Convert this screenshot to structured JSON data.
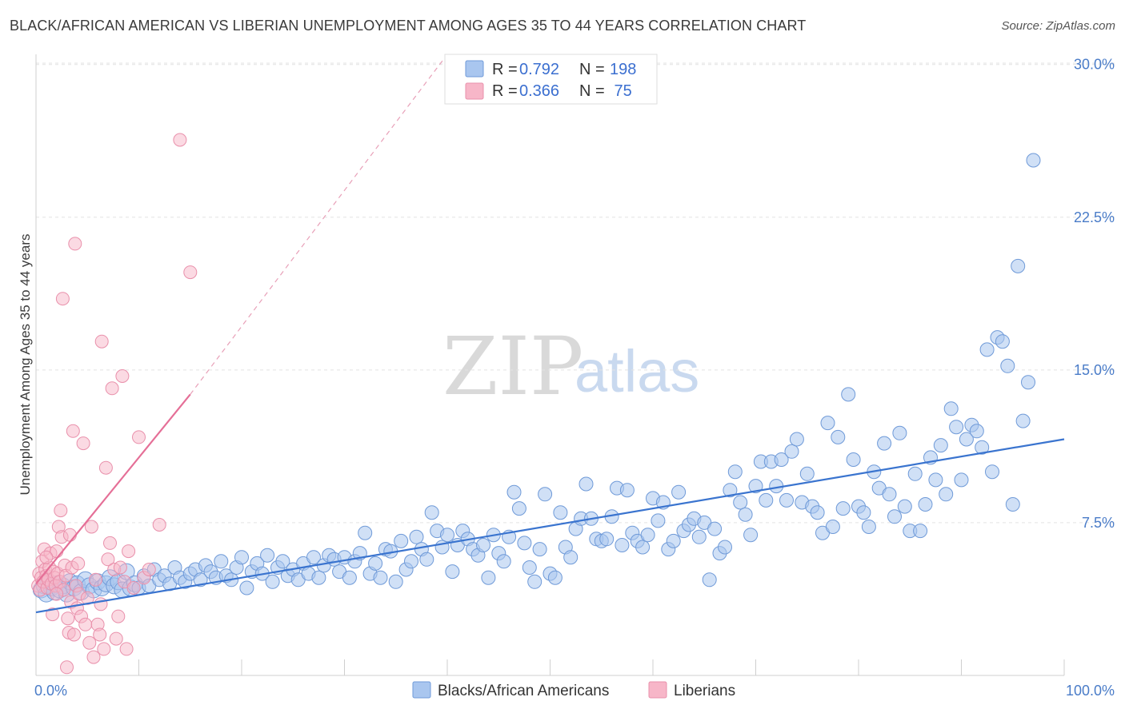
{
  "header": {
    "title": "BLACK/AFRICAN AMERICAN VS LIBERIAN UNEMPLOYMENT AMONG AGES 35 TO 44 YEARS CORRELATION CHART",
    "source": "Source: ZipAtlas.com"
  },
  "watermark": {
    "zip": "ZIP",
    "atlas": "atlas"
  },
  "legend": {
    "rows": [
      {
        "r_label": "R = ",
        "r_value": "0.792",
        "n_label": "N = ",
        "n_value": "198",
        "color": "#a9c6ef"
      },
      {
        "r_label": "R = ",
        "r_value": "0.366",
        "n_label": "N = ",
        "n_value": " 75",
        "color": "#f7b6c8"
      }
    ]
  },
  "bottom_legend": [
    "Blacks/African Americans",
    "Liberians"
  ],
  "chart_data": {
    "type": "scatter",
    "title": "BLACK/AFRICAN AMERICAN VS LIBERIAN UNEMPLOYMENT AMONG AGES 35 TO 44 YEARS CORRELATION CHART",
    "xlabel": "",
    "ylabel": "Unemployment Among Ages 35 to 44 years",
    "xlim": [
      0,
      100
    ],
    "ylim": [
      0,
      30.5
    ],
    "x_tick_labels": [
      "0.0%",
      "100.0%"
    ],
    "y_ticks": [
      7.5,
      15.0,
      22.5,
      30.0
    ],
    "y_tick_labels": [
      "7.5%",
      "15.0%",
      "22.5%",
      "30.0%"
    ],
    "grid": true,
    "colors": {
      "blue": "#4a7cc8",
      "blue_fill": "#a9c6ef",
      "pink": "#e8779c",
      "pink_fill": "#f7b6c8"
    },
    "series": [
      {
        "name": "Blacks/African Americans",
        "R": 0.792,
        "N": 198,
        "trend": {
          "x0": 0,
          "y0": 3.1,
          "x1": 100,
          "y1": 11.6
        },
        "points": [
          [
            0.5,
            4.2
          ],
          [
            0.8,
            4.4
          ],
          [
            1.0,
            4.0
          ],
          [
            1.2,
            4.6
          ],
          [
            1.5,
            4.3
          ],
          [
            1.8,
            4.1
          ],
          [
            2.0,
            4.5
          ],
          [
            2.3,
            4.2
          ],
          [
            2.6,
            4.4
          ],
          [
            3.0,
            4.0
          ],
          [
            3.3,
            4.6
          ],
          [
            3.7,
            4.3
          ],
          [
            4.0,
            4.5
          ],
          [
            4.4,
            4.1
          ],
          [
            4.8,
            4.7
          ],
          [
            5.2,
            4.4
          ],
          [
            5.6,
            4.2
          ],
          [
            6.0,
            4.6
          ],
          [
            6.4,
            4.3
          ],
          [
            6.8,
            4.5
          ],
          [
            7.2,
            4.8
          ],
          [
            7.6,
            4.4
          ],
          [
            8.0,
            4.6
          ],
          [
            8.4,
            4.2
          ],
          [
            8.8,
            5.1
          ],
          [
            9.2,
            4.3
          ],
          [
            9.6,
            4.5
          ],
          [
            10.0,
            4.3
          ],
          [
            10.5,
            4.9
          ],
          [
            11.0,
            4.4
          ],
          [
            11.5,
            5.2
          ],
          [
            12.0,
            4.7
          ],
          [
            12.5,
            4.9
          ],
          [
            13.0,
            4.5
          ],
          [
            13.5,
            5.3
          ],
          [
            14.0,
            4.8
          ],
          [
            14.5,
            4.6
          ],
          [
            15.0,
            5.0
          ],
          [
            15.5,
            5.2
          ],
          [
            16.0,
            4.7
          ],
          [
            16.5,
            5.4
          ],
          [
            17.0,
            5.1
          ],
          [
            17.5,
            4.8
          ],
          [
            18.0,
            5.6
          ],
          [
            18.5,
            4.9
          ],
          [
            19.0,
            4.7
          ],
          [
            19.5,
            5.3
          ],
          [
            20.0,
            5.8
          ],
          [
            20.5,
            4.3
          ],
          [
            21.0,
            5.1
          ],
          [
            21.5,
            5.5
          ],
          [
            22.0,
            5.0
          ],
          [
            22.5,
            5.9
          ],
          [
            23.0,
            4.6
          ],
          [
            23.5,
            5.3
          ],
          [
            24.0,
            5.6
          ],
          [
            24.5,
            4.9
          ],
          [
            25.0,
            5.2
          ],
          [
            25.5,
            4.7
          ],
          [
            26.0,
            5.5
          ],
          [
            26.5,
            5.0
          ],
          [
            27.0,
            5.8
          ],
          [
            27.5,
            4.8
          ],
          [
            28.0,
            5.4
          ],
          [
            28.5,
            5.9
          ],
          [
            29.0,
            5.7
          ],
          [
            29.5,
            5.1
          ],
          [
            30.0,
            5.8
          ],
          [
            30.5,
            4.8
          ],
          [
            31.0,
            5.6
          ],
          [
            31.5,
            6.0
          ],
          [
            32.0,
            7.0
          ],
          [
            32.5,
            5.0
          ],
          [
            33.0,
            5.5
          ],
          [
            33.5,
            4.8
          ],
          [
            34.0,
            6.2
          ],
          [
            34.5,
            6.1
          ],
          [
            35.0,
            4.6
          ],
          [
            35.5,
            6.6
          ],
          [
            36.0,
            5.2
          ],
          [
            36.5,
            5.6
          ],
          [
            37.0,
            6.8
          ],
          [
            37.5,
            6.2
          ],
          [
            38.0,
            5.7
          ],
          [
            38.5,
            8.0
          ],
          [
            39.0,
            7.1
          ],
          [
            39.5,
            6.3
          ],
          [
            40.0,
            6.9
          ],
          [
            40.5,
            5.1
          ],
          [
            41.0,
            6.4
          ],
          [
            41.5,
            7.1
          ],
          [
            42.0,
            6.7
          ],
          [
            42.5,
            6.2
          ],
          [
            43.0,
            5.9
          ],
          [
            43.5,
            6.4
          ],
          [
            44.0,
            4.8
          ],
          [
            44.5,
            6.9
          ],
          [
            45.0,
            6.0
          ],
          [
            45.5,
            5.6
          ],
          [
            46.0,
            6.8
          ],
          [
            46.5,
            9.0
          ],
          [
            47.0,
            8.2
          ],
          [
            47.5,
            6.5
          ],
          [
            48.0,
            5.3
          ],
          [
            48.5,
            4.6
          ],
          [
            49.0,
            6.2
          ],
          [
            49.5,
            8.9
          ],
          [
            50.0,
            5.0
          ],
          [
            50.5,
            4.8
          ],
          [
            51.0,
            8.0
          ],
          [
            51.5,
            6.3
          ],
          [
            52.0,
            5.8
          ],
          [
            52.5,
            7.2
          ],
          [
            53.0,
            7.7
          ],
          [
            53.5,
            9.4
          ],
          [
            54.0,
            7.7
          ],
          [
            54.5,
            6.7
          ],
          [
            55.0,
            6.6
          ],
          [
            55.5,
            6.7
          ],
          [
            56.0,
            7.8
          ],
          [
            56.5,
            9.2
          ],
          [
            57.0,
            6.4
          ],
          [
            57.5,
            9.1
          ],
          [
            58.0,
            7.0
          ],
          [
            58.5,
            6.6
          ],
          [
            59.0,
            6.3
          ],
          [
            59.5,
            6.9
          ],
          [
            60.0,
            8.7
          ],
          [
            60.5,
            7.6
          ],
          [
            61.0,
            8.5
          ],
          [
            61.5,
            6.2
          ],
          [
            62.0,
            6.6
          ],
          [
            62.5,
            9.0
          ],
          [
            63.0,
            7.1
          ],
          [
            63.5,
            7.4
          ],
          [
            64.0,
            7.7
          ],
          [
            64.5,
            6.8
          ],
          [
            65.0,
            7.5
          ],
          [
            65.5,
            4.7
          ],
          [
            66.0,
            7.2
          ],
          [
            66.5,
            6.0
          ],
          [
            67.0,
            6.3
          ],
          [
            67.5,
            9.1
          ],
          [
            68.0,
            10.0
          ],
          [
            68.5,
            8.5
          ],
          [
            69.0,
            7.9
          ],
          [
            69.5,
            6.9
          ],
          [
            70.0,
            9.3
          ],
          [
            70.5,
            10.5
          ],
          [
            71.0,
            8.6
          ],
          [
            71.5,
            10.5
          ],
          [
            72.0,
            9.3
          ],
          [
            72.5,
            10.6
          ],
          [
            73.0,
            8.6
          ],
          [
            73.5,
            11.0
          ],
          [
            74.0,
            11.6
          ],
          [
            74.5,
            8.5
          ],
          [
            75.0,
            9.9
          ],
          [
            75.5,
            8.3
          ],
          [
            76.0,
            8.0
          ],
          [
            76.5,
            7.0
          ],
          [
            77.0,
            12.4
          ],
          [
            77.5,
            7.3
          ],
          [
            78.0,
            11.7
          ],
          [
            78.5,
            8.2
          ],
          [
            79.0,
            13.8
          ],
          [
            79.5,
            10.6
          ],
          [
            80.0,
            8.3
          ],
          [
            80.5,
            8.0
          ],
          [
            81.0,
            7.3
          ],
          [
            81.5,
            10.0
          ],
          [
            82.0,
            9.2
          ],
          [
            82.5,
            11.4
          ],
          [
            83.0,
            8.9
          ],
          [
            83.5,
            7.8
          ],
          [
            84.0,
            11.9
          ],
          [
            84.5,
            8.3
          ],
          [
            85.0,
            7.1
          ],
          [
            85.5,
            9.9
          ],
          [
            86.0,
            7.1
          ],
          [
            86.5,
            8.4
          ],
          [
            87.0,
            10.7
          ],
          [
            87.5,
            9.6
          ],
          [
            88.0,
            11.3
          ],
          [
            88.5,
            8.9
          ],
          [
            89.0,
            13.1
          ],
          [
            89.5,
            12.2
          ],
          [
            90.0,
            9.6
          ],
          [
            90.5,
            11.6
          ],
          [
            91.0,
            12.3
          ],
          [
            91.5,
            12.0
          ],
          [
            92.0,
            11.2
          ],
          [
            92.5,
            16.0
          ],
          [
            93.0,
            10.0
          ],
          [
            93.5,
            16.6
          ],
          [
            94.0,
            16.4
          ],
          [
            94.5,
            15.2
          ],
          [
            95.0,
            8.4
          ],
          [
            95.5,
            20.1
          ],
          [
            96.0,
            12.5
          ],
          [
            96.5,
            14.4
          ],
          [
            97.0,
            25.3
          ]
        ]
      },
      {
        "name": "Liberians",
        "R": 0.366,
        "N": 75,
        "trend": {
          "x0": 0,
          "y0": 4.5,
          "x1": 15,
          "y1": 13.8,
          "dash_x1": 40,
          "dash_y1": 30.5
        },
        "points": [
          [
            0.2,
            4.4
          ],
          [
            0.3,
            5.0
          ],
          [
            0.4,
            4.2
          ],
          [
            0.5,
            4.8
          ],
          [
            0.6,
            5.6
          ],
          [
            0.7,
            4.6
          ],
          [
            0.8,
            6.2
          ],
          [
            0.9,
            5.2
          ],
          [
            1.0,
            4.9
          ],
          [
            1.1,
            4.3
          ],
          [
            1.2,
            4.7
          ],
          [
            1.3,
            5.3
          ],
          [
            1.4,
            6.0
          ],
          [
            1.5,
            4.5
          ],
          [
            1.6,
            3.0
          ],
          [
            1.7,
            5.1
          ],
          [
            1.8,
            4.8
          ],
          [
            1.9,
            4.4
          ],
          [
            2.0,
            6.1
          ],
          [
            2.1,
            5.0
          ],
          [
            2.2,
            7.3
          ],
          [
            2.3,
            4.6
          ],
          [
            2.4,
            8.1
          ],
          [
            2.5,
            6.8
          ],
          [
            2.6,
            18.5
          ],
          [
            2.7,
            4.2
          ],
          [
            2.8,
            5.4
          ],
          [
            2.9,
            4.9
          ],
          [
            3.0,
            0.4
          ],
          [
            3.1,
            2.8
          ],
          [
            3.2,
            2.1
          ],
          [
            3.3,
            6.9
          ],
          [
            3.4,
            3.6
          ],
          [
            3.5,
            5.3
          ],
          [
            3.6,
            12.0
          ],
          [
            3.7,
            2.0
          ],
          [
            3.8,
            21.2
          ],
          [
            3.9,
            4.4
          ],
          [
            4.0,
            3.3
          ],
          [
            4.2,
            4.0
          ],
          [
            4.4,
            2.9
          ],
          [
            4.6,
            11.4
          ],
          [
            4.8,
            2.5
          ],
          [
            5.0,
            3.8
          ],
          [
            5.2,
            1.6
          ],
          [
            5.4,
            7.3
          ],
          [
            5.6,
            0.9
          ],
          [
            5.8,
            4.7
          ],
          [
            6.0,
            2.5
          ],
          [
            6.2,
            2.0
          ],
          [
            6.4,
            16.4
          ],
          [
            6.6,
            1.3
          ],
          [
            6.8,
            10.2
          ],
          [
            7.0,
            5.7
          ],
          [
            7.2,
            6.5
          ],
          [
            7.4,
            14.1
          ],
          [
            7.6,
            5.2
          ],
          [
            7.8,
            1.8
          ],
          [
            8.0,
            2.9
          ],
          [
            8.2,
            5.3
          ],
          [
            8.4,
            14.7
          ],
          [
            8.6,
            4.6
          ],
          [
            8.8,
            1.3
          ],
          [
            9.0,
            6.1
          ],
          [
            9.5,
            4.3
          ],
          [
            10.0,
            11.7
          ],
          [
            10.5,
            4.8
          ],
          [
            11.0,
            5.2
          ],
          [
            12.0,
            7.4
          ],
          [
            14.0,
            26.3
          ],
          [
            15.0,
            19.8
          ],
          [
            6.3,
            3.5
          ],
          [
            4.1,
            5.5
          ],
          [
            2.0,
            4.0
          ],
          [
            1.0,
            5.8
          ]
        ]
      }
    ]
  }
}
